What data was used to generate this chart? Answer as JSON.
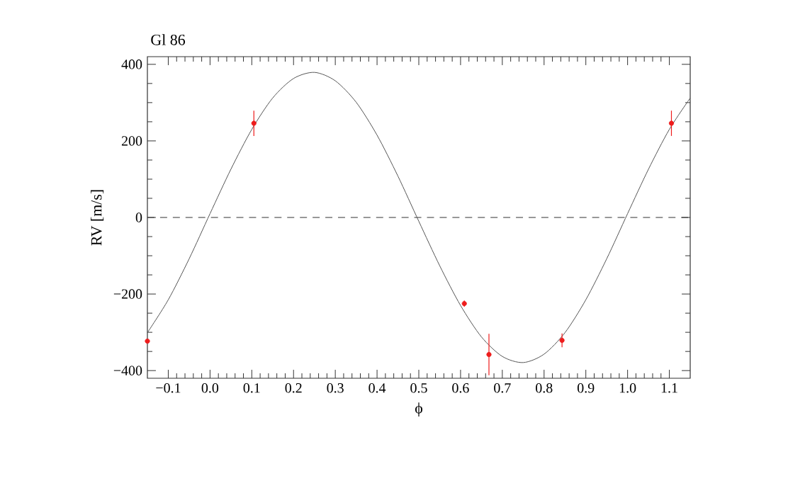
{
  "chart_data": {
    "type": "scatter",
    "title": "Gl 86",
    "xlabel": "ϕ",
    "ylabel": "RV [m/s]",
    "xlim": [
      -0.15,
      1.15
    ],
    "ylim": [
      -420,
      420
    ],
    "xticks": [
      {
        "value": -0.1,
        "label": "−0.1"
      },
      {
        "value": 0,
        "label": "0.0"
      },
      {
        "value": 0.1,
        "label": "0.1"
      },
      {
        "value": 0.2,
        "label": "0.2"
      },
      {
        "value": 0.3,
        "label": "0.3"
      },
      {
        "value": 0.4,
        "label": "0.4"
      },
      {
        "value": 0.5,
        "label": "0.5"
      },
      {
        "value": 0.6,
        "label": "0.6"
      },
      {
        "value": 0.7,
        "label": "0.7"
      },
      {
        "value": 0.8,
        "label": "0.8"
      },
      {
        "value": 0.9,
        "label": "0.9"
      },
      {
        "value": 1.0,
        "label": "1.0"
      },
      {
        "value": 1.1,
        "label": "1.1"
      }
    ],
    "yticks": [
      {
        "value": -400,
        "label": "−400"
      },
      {
        "value": -200,
        "label": "−200"
      },
      0,
      200,
      400
    ],
    "grid": false,
    "ref_lines": [
      {
        "axis": "y",
        "value": 0,
        "color": "#333333",
        "line_style": "dashed"
      }
    ],
    "series": [
      {
        "type": "line",
        "color": "#555555",
        "marker": "none",
        "line_style": "solid",
        "x": [
          -0.15,
          -0.1,
          -0.05,
          0,
          0.05,
          0.1,
          0.15,
          0.2,
          0.25,
          0.3,
          0.35,
          0.4,
          0.45,
          0.5,
          0.55,
          0.6,
          0.65,
          0.7,
          0.75,
          0.8,
          0.85,
          0.9,
          0.95,
          1.0,
          1.05,
          1.1,
          1.15
        ],
        "values": [
          -301,
          -215,
          -108,
          10,
          126,
          230,
          312,
          363,
          379,
          357,
          301,
          215,
          108,
          -10,
          -126,
          -230,
          -312,
          -363,
          -379,
          -357,
          -301,
          -215,
          -108,
          10,
          126,
          230,
          312
        ]
      },
      {
        "color": "#ee1c1c",
        "marker": "circle",
        "x": [
          -0.15,
          0.105,
          0.609,
          0.668,
          0.843,
          1.105
        ],
        "values": [
          -323,
          246,
          -225,
          -358,
          -321,
          246
        ],
        "errors": [
          null,
          33,
          8,
          54,
          18,
          33
        ]
      }
    ]
  }
}
